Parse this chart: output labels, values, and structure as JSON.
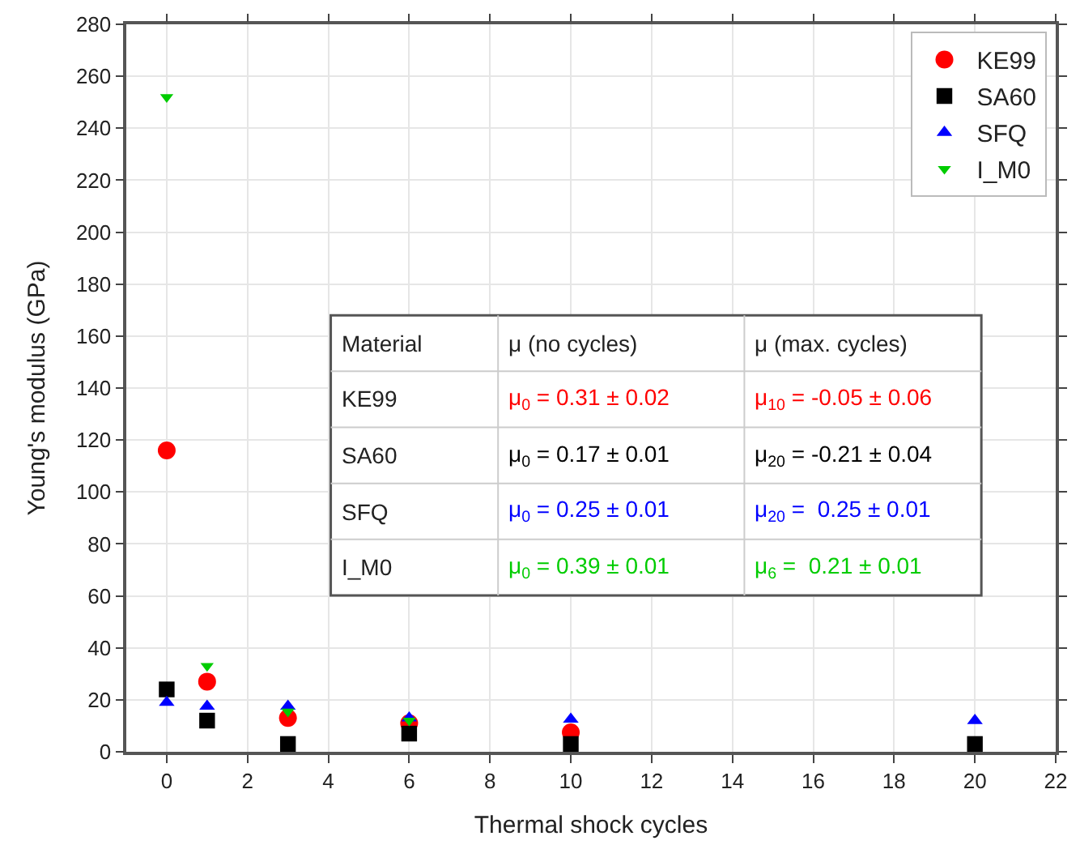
{
  "chart_data": {
    "type": "scatter",
    "xlabel": "Thermal shock cycles",
    "ylabel": "Young's modulus (GPa)",
    "xlim": [
      -1,
      22
    ],
    "xticks": [
      0,
      2,
      4,
      6,
      8,
      10,
      12,
      14,
      16,
      18,
      20,
      22
    ],
    "ylim": [
      0,
      280
    ],
    "yticks": [
      0,
      20,
      40,
      60,
      80,
      100,
      120,
      140,
      160,
      180,
      200,
      220,
      240,
      260,
      280
    ],
    "grid": true,
    "legend": "top right",
    "series": [
      {
        "name": "KE99",
        "color": "#ff0000",
        "marker": "circle",
        "x": [
          0,
          1,
          3,
          6,
          10
        ],
        "values": [
          116,
          27,
          13,
          11,
          7.5
        ]
      },
      {
        "name": "SA60",
        "color": "#000000",
        "marker": "square",
        "x": [
          0,
          1,
          3,
          6,
          10,
          20
        ],
        "values": [
          24,
          12,
          3,
          7,
          3,
          3
        ]
      },
      {
        "name": "SFQ",
        "color": "#0000ff",
        "marker": "triangle",
        "x": [
          0,
          1,
          3,
          6,
          10,
          20
        ],
        "values": [
          19,
          17.5,
          17.5,
          13,
          12.5,
          12
        ]
      },
      {
        "name": "I_M0",
        "color": "#00cc00",
        "marker": "triangle-down",
        "x": [
          0,
          1,
          3,
          6
        ],
        "values": [
          252,
          33,
          15.5,
          12
        ]
      }
    ],
    "annotations": [
      "Material",
      "μ (no cycles)",
      "μ (max. cycles)",
      "KE99",
      "μ$_{0}$ = 0.31 ± 0.02",
      "μ$_{10}$ = -0.05 ± 0.06",
      "SA60",
      "μ$_{0}$ = 0.17 ± 0.01",
      "μ$_{20}$ = -0.21 ± 0.04",
      "SFQ",
      "μ$_{0}$ = 0.25 ± 0.01",
      "μ$_{20}$ =  0.25 ± 0.01",
      "I_M0",
      "μ$_{0}$ = 0.39 ± 0.01",
      "μ$_{6}$ =  0.21 ± 0.01"
    ]
  }
}
